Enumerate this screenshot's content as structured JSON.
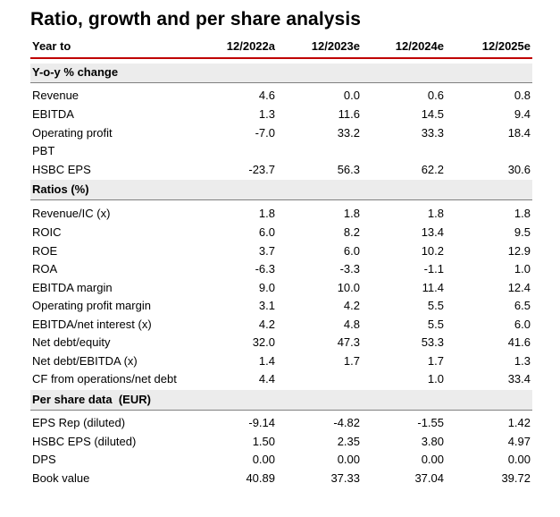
{
  "title": "Ratio, growth and per share analysis",
  "header": {
    "label": "Year to",
    "col1": "12/2022a",
    "col2": "12/2023e",
    "col3": "12/2024e",
    "col4": "12/2025e"
  },
  "yoy": {
    "heading": "Y-o-y % change",
    "rows": [
      {
        "label": "Revenue",
        "v1": "4.6",
        "v2": "0.0",
        "v3": "0.6",
        "v4": "0.8"
      },
      {
        "label": "EBITDA",
        "v1": "1.3",
        "v2": "11.6",
        "v3": "14.5",
        "v4": "9.4"
      },
      {
        "label": "Operating profit",
        "v1": "-7.0",
        "v2": "33.2",
        "v3": "33.3",
        "v4": "18.4"
      },
      {
        "label": "PBT",
        "v1": "",
        "v2": "",
        "v3": "",
        "v4": ""
      },
      {
        "label": "HSBC EPS",
        "v1": "-23.7",
        "v2": "56.3",
        "v3": "62.2",
        "v4": "30.6"
      }
    ]
  },
  "ratios": {
    "heading": "Ratios (%)",
    "rows": [
      {
        "label": "Revenue/IC (x)",
        "v1": "1.8",
        "v2": "1.8",
        "v3": "1.8",
        "v4": "1.8"
      },
      {
        "label": "ROIC",
        "v1": "6.0",
        "v2": "8.2",
        "v3": "13.4",
        "v4": "9.5"
      },
      {
        "label": "ROE",
        "v1": "3.7",
        "v2": "6.0",
        "v3": "10.2",
        "v4": "12.9"
      },
      {
        "label": "ROA",
        "v1": "-6.3",
        "v2": "-3.3",
        "v3": "-1.1",
        "v4": "1.0"
      },
      {
        "label": "EBITDA margin",
        "v1": "9.0",
        "v2": "10.0",
        "v3": "11.4",
        "v4": "12.4"
      },
      {
        "label": "Operating profit margin",
        "v1": "3.1",
        "v2": "4.2",
        "v3": "5.5",
        "v4": "6.5"
      },
      {
        "label": "EBITDA/net interest (x)",
        "v1": "4.2",
        "v2": "4.8",
        "v3": "5.5",
        "v4": "6.0"
      },
      {
        "label": "Net debt/equity",
        "v1": "32.0",
        "v2": "47.3",
        "v3": "53.3",
        "v4": "41.6"
      },
      {
        "label": "Net debt/EBITDA (x)",
        "v1": "1.4",
        "v2": "1.7",
        "v3": "1.7",
        "v4": "1.3"
      },
      {
        "label": "CF from operations/net debt",
        "v1": "4.4",
        "v2": "",
        "v3": "1.0",
        "v4": "33.4"
      }
    ]
  },
  "per_share": {
    "heading": "Per share data  (EUR)",
    "rows": [
      {
        "label": "EPS Rep (diluted)",
        "v1": "-9.14",
        "v2": "-4.82",
        "v3": "-1.55",
        "v4": "1.42"
      },
      {
        "label": "HSBC EPS (diluted)",
        "v1": "1.50",
        "v2": "2.35",
        "v3": "3.80",
        "v4": "4.97"
      },
      {
        "label": "DPS",
        "v1": "0.00",
        "v2": "0.00",
        "v3": "0.00",
        "v4": "0.00"
      },
      {
        "label": "Book value",
        "v1": "40.89",
        "v2": "37.33",
        "v3": "37.04",
        "v4": "39.72"
      }
    ]
  },
  "colors": {
    "accent_line": "#c00000",
    "shade": "#ececec"
  }
}
